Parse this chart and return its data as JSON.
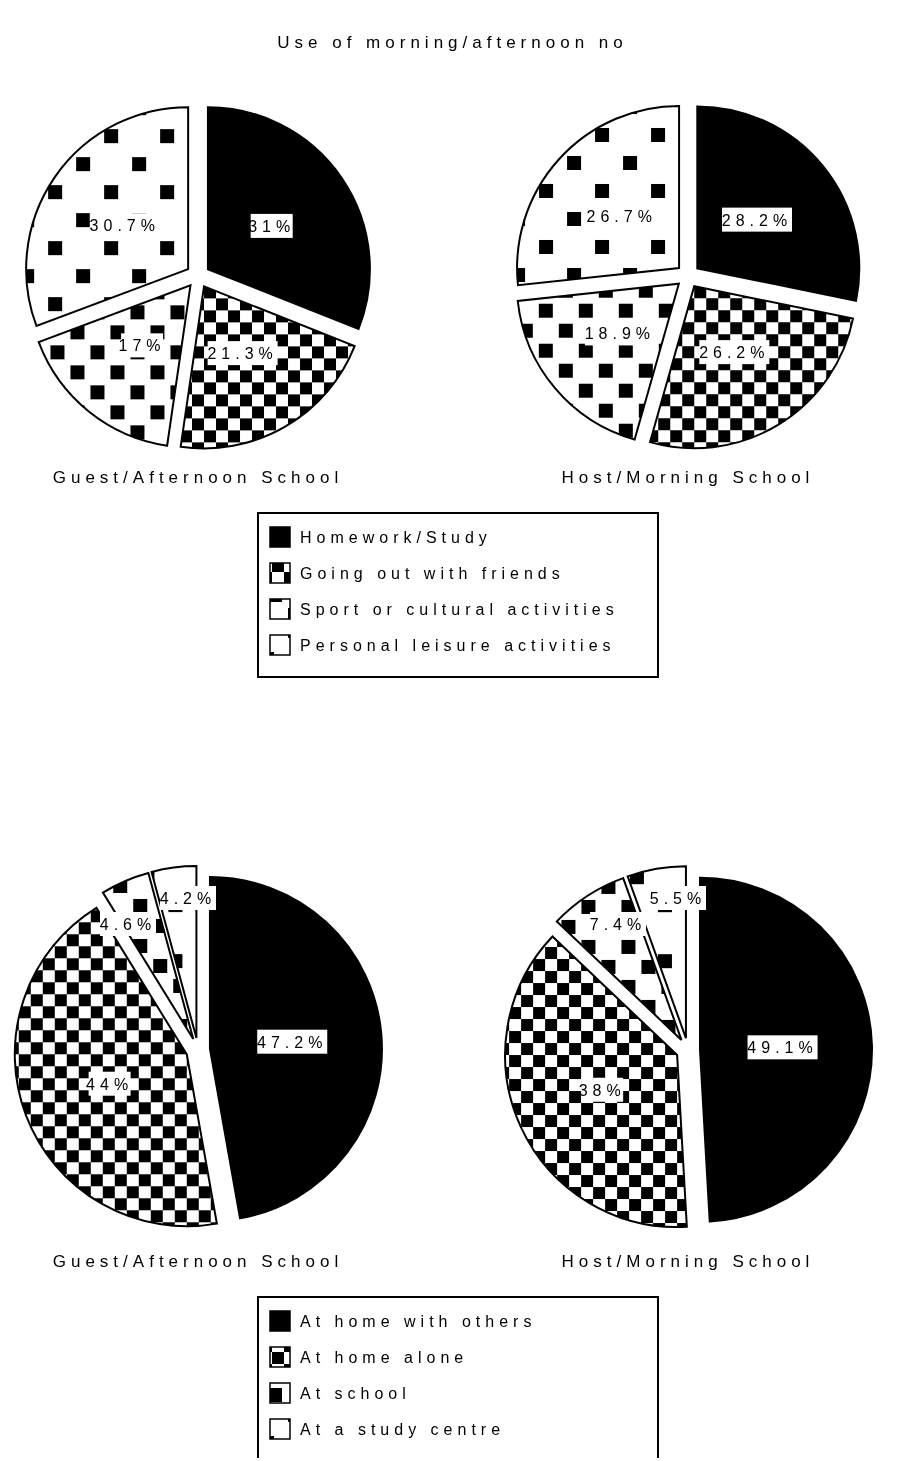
{
  "chart_data": [
    {
      "type": "pie",
      "title": "Use of morning/afternoon no",
      "categories": [
        "Homework/Study",
        "Going out with friends",
        "Sport or cultural activities",
        "Personal leisure activities"
      ],
      "colors": [
        "#000000",
        "#000000",
        "#000000",
        "#000000"
      ],
      "legend": "bottom",
      "series": [
        {
          "name": "Guest/Afternoon School",
          "values": [
            31,
            21.3,
            17,
            30.7
          ],
          "value_labels": [
            "31%",
            "21.3%",
            "17%",
            "30.7%"
          ]
        },
        {
          "name": "Host/Morning School",
          "values": [
            28.2,
            26.2,
            18.9,
            26.7
          ],
          "value_labels": [
            "28.2%",
            "26.2%",
            "18.9%",
            "26.7%"
          ]
        }
      ]
    },
    {
      "type": "pie",
      "categories": [
        "At home with others",
        "At home alone",
        "At school",
        "At a study centre"
      ],
      "colors": [
        "#000000",
        "#000000",
        "#000000",
        "#000000"
      ],
      "legend": "bottom",
      "series": [
        {
          "name": "Guest/Afternoon School",
          "values": [
            47.2,
            44,
            4.6,
            4.2
          ],
          "value_labels": [
            "47.2%",
            "44%",
            "4.6%",
            "4.2%"
          ]
        },
        {
          "name": "Host/Morning School",
          "values": [
            49.1,
            38,
            7.4,
            5.5
          ],
          "value_labels": [
            "49.1%",
            "38%",
            "7.4%",
            "5.5%"
          ]
        }
      ]
    }
  ]
}
